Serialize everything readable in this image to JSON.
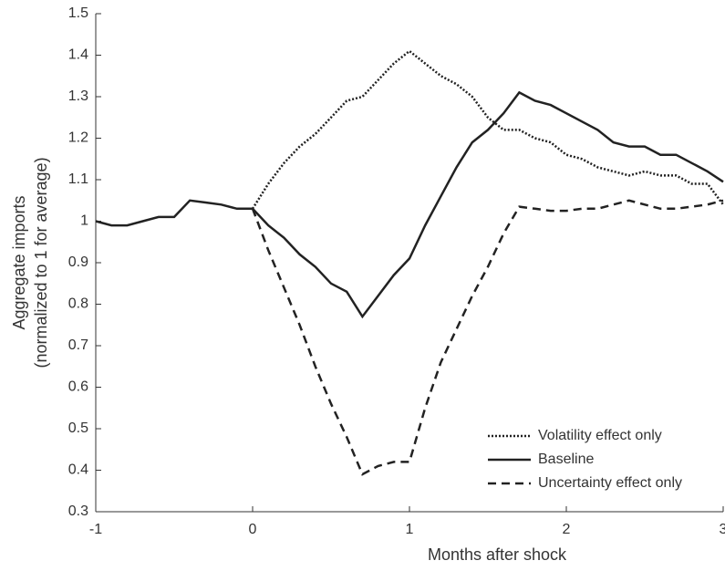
{
  "chart_data": {
    "type": "line",
    "xlabel": "Months after shock",
    "ylabel": [
      "Aggregate imports",
      "(normalized to 1 for average)"
    ],
    "x": [
      -1,
      -0.9,
      -0.8,
      -0.7,
      -0.6,
      -0.5,
      -0.4,
      -0.3,
      -0.2,
      -0.1,
      0,
      0.1,
      0.2,
      0.3,
      0.4,
      0.5,
      0.6,
      0.7,
      0.8,
      0.9,
      1,
      1.1,
      1.2,
      1.3,
      1.4,
      1.5,
      1.6,
      1.7,
      1.8,
      1.9,
      2,
      2.1,
      2.2,
      2.3,
      2.4,
      2.5,
      2.6,
      2.7,
      2.8,
      2.9,
      3
    ],
    "series": [
      {
        "name": "Volatility effect only",
        "color": "#222222",
        "dash": "dotted",
        "values": [
          null,
          null,
          null,
          null,
          null,
          null,
          null,
          null,
          null,
          null,
          1.03,
          1.09,
          1.14,
          1.18,
          1.21,
          1.25,
          1.29,
          1.3,
          1.34,
          1.38,
          1.41,
          1.38,
          1.35,
          1.33,
          1.3,
          1.25,
          1.22,
          1.22,
          1.2,
          1.19,
          1.16,
          1.15,
          1.13,
          1.12,
          1.11,
          1.12,
          1.11,
          1.11,
          1.09,
          1.09,
          1.04
        ]
      },
      {
        "name": "Baseline",
        "color": "#222222",
        "dash": "solid",
        "values": [
          1.0,
          0.99,
          0.99,
          1.0,
          1.01,
          1.01,
          1.05,
          1.045,
          1.04,
          1.03,
          1.03,
          0.99,
          0.96,
          0.92,
          0.89,
          0.85,
          0.83,
          0.77,
          0.82,
          0.87,
          0.91,
          0.99,
          1.06,
          1.13,
          1.19,
          1.22,
          1.26,
          1.31,
          1.29,
          1.28,
          1.26,
          1.24,
          1.22,
          1.19,
          1.18,
          1.18,
          1.16,
          1.16,
          1.14,
          1.12,
          1.095
        ]
      },
      {
        "name": "Uncertainty effect only",
        "color": "#222222",
        "dash": "dashed",
        "values": [
          null,
          null,
          null,
          null,
          null,
          null,
          null,
          null,
          null,
          null,
          1.03,
          0.93,
          0.84,
          0.75,
          0.65,
          0.56,
          0.48,
          0.39,
          0.41,
          0.42,
          0.42,
          0.55,
          0.66,
          0.74,
          0.82,
          0.89,
          0.97,
          1.035,
          1.03,
          1.025,
          1.025,
          1.03,
          1.03,
          1.04,
          1.05,
          1.04,
          1.03,
          1.03,
          1.035,
          1.04,
          1.05
        ]
      }
    ],
    "xlim": [
      -1,
      3
    ],
    "xticks": [
      -1,
      0,
      1,
      2,
      3
    ],
    "ylim": [
      0.3,
      1.5
    ],
    "yticks": [
      0.3,
      0.4,
      0.5,
      0.6,
      0.7,
      0.8,
      0.9,
      1,
      1.1,
      1.2,
      1.3,
      1.4,
      1.5
    ],
    "legend": "lower right"
  }
}
